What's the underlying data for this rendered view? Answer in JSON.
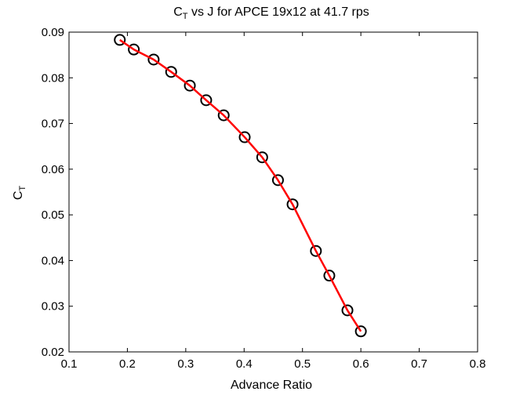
{
  "chart_data": {
    "type": "scatter",
    "title_main": "C",
    "title_sub": "T",
    "title_rest": " vs J for APCE 19x12 at 41.7 rps",
    "xlabel": "Advance Ratio",
    "ylabel_main": "C",
    "ylabel_sub": "T",
    "xlim": [
      0.1,
      0.8
    ],
    "ylim": [
      0.02,
      0.09
    ],
    "xticks": [
      "0.1",
      "0.2",
      "0.3",
      "0.4",
      "0.5",
      "0.6",
      "0.7",
      "0.8"
    ],
    "yticks": [
      "0.02",
      "0.03",
      "0.04",
      "0.05",
      "0.06",
      "0.07",
      "0.08",
      "0.09"
    ],
    "grid": false,
    "series": [
      {
        "marker": "circle",
        "color": "#000000",
        "x": [
          0.187,
          0.211,
          0.245,
          0.275,
          0.307,
          0.335,
          0.365,
          0.401,
          0.431,
          0.458,
          0.483,
          0.523,
          0.546,
          0.577,
          0.6
        ],
        "y": [
          0.0883,
          0.0862,
          0.084,
          0.0813,
          0.0783,
          0.0751,
          0.0718,
          0.067,
          0.0626,
          0.0576,
          0.0523,
          0.0421,
          0.0367,
          0.0291,
          0.0245
        ]
      },
      {
        "marker": "none",
        "color": "#ff0000",
        "x": [
          0.187,
          0.211,
          0.245,
          0.275,
          0.307,
          0.335,
          0.365,
          0.401,
          0.431,
          0.458,
          0.483,
          0.523,
          0.546,
          0.577,
          0.6
        ],
        "y": [
          0.0883,
          0.0862,
          0.084,
          0.0813,
          0.0783,
          0.0751,
          0.0718,
          0.067,
          0.0626,
          0.0576,
          0.0523,
          0.0421,
          0.0367,
          0.0291,
          0.0245
        ]
      }
    ]
  }
}
